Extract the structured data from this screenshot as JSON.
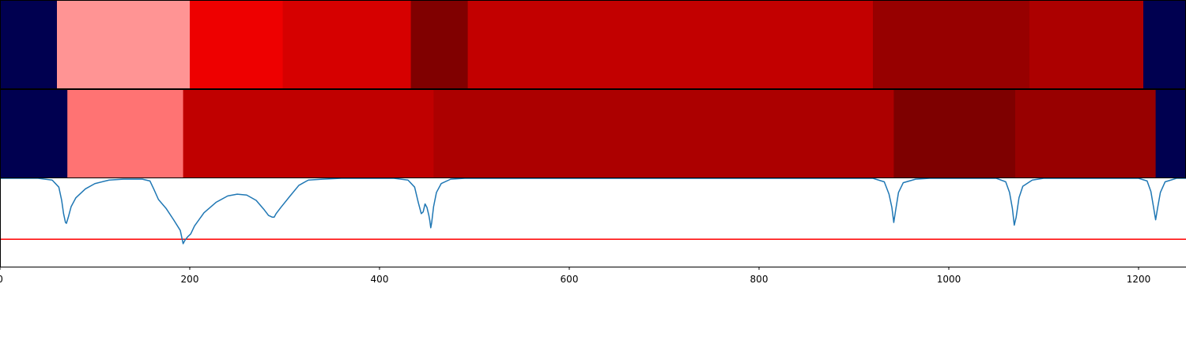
{
  "chart_data": [
    {
      "type": "heatmap",
      "row": "top",
      "segments": [
        {
          "start": 0,
          "end": 60,
          "color": "#000050"
        },
        {
          "start": 60,
          "end": 200,
          "color": "#ff9494"
        },
        {
          "start": 200,
          "end": 298,
          "color": "#ee0000"
        },
        {
          "start": 298,
          "end": 433,
          "color": "#d60000"
        },
        {
          "start": 433,
          "end": 493,
          "color": "#800000"
        },
        {
          "start": 493,
          "end": 920,
          "color": "#c20000"
        },
        {
          "start": 920,
          "end": 1085,
          "color": "#970000"
        },
        {
          "start": 1085,
          "end": 1205,
          "color": "#ac0000"
        },
        {
          "start": 1205,
          "end": 1250,
          "color": "#000050"
        }
      ]
    },
    {
      "type": "heatmap",
      "row": "middle",
      "segments": [
        {
          "start": 0,
          "end": 71,
          "color": "#000050"
        },
        {
          "start": 71,
          "end": 193,
          "color": "#ff7373"
        },
        {
          "start": 193,
          "end": 457,
          "color": "#c00000"
        },
        {
          "start": 457,
          "end": 942,
          "color": "#ac0000"
        },
        {
          "start": 942,
          "end": 1070,
          "color": "#7e0000"
        },
        {
          "start": 1070,
          "end": 1218,
          "color": "#980000"
        },
        {
          "start": 1218,
          "end": 1250,
          "color": "#000050"
        }
      ]
    },
    {
      "type": "line",
      "xlim": [
        0,
        1250
      ],
      "ylim": [
        0,
        1
      ],
      "x_ticks": [
        "0",
        "200",
        "400",
        "600",
        "800",
        "1000",
        "1200"
      ],
      "x_tick_values": [
        0,
        200,
        400,
        600,
        800,
        1000,
        1200
      ],
      "threshold": {
        "y": 0.31,
        "color": "#ff0000"
      },
      "series": [
        {
          "color": "#1f77b4",
          "points": [
            [
              0,
              1.0
            ],
            [
              40,
              1.0
            ],
            [
              55,
              0.98
            ],
            [
              62,
              0.9
            ],
            [
              65,
              0.75
            ],
            [
              67,
              0.6
            ],
            [
              69,
              0.5
            ],
            [
              70,
              0.49
            ],
            [
              72,
              0.56
            ],
            [
              75,
              0.68
            ],
            [
              80,
              0.78
            ],
            [
              90,
              0.88
            ],
            [
              100,
              0.94
            ],
            [
              115,
              0.98
            ],
            [
              130,
              0.99
            ],
            [
              150,
              0.99
            ],
            [
              158,
              0.97
            ],
            [
              162,
              0.88
            ],
            [
              167,
              0.76
            ],
            [
              175,
              0.66
            ],
            [
              183,
              0.53
            ],
            [
              190,
              0.41
            ],
            [
              193,
              0.26
            ],
            [
              195,
              0.3
            ],
            [
              198,
              0.34
            ],
            [
              201,
              0.37
            ],
            [
              205,
              0.46
            ],
            [
              215,
              0.61
            ],
            [
              228,
              0.73
            ],
            [
              240,
              0.8
            ],
            [
              250,
              0.82
            ],
            [
              260,
              0.81
            ],
            [
              270,
              0.75
            ],
            [
              278,
              0.65
            ],
            [
              283,
              0.58
            ],
            [
              287,
              0.56
            ],
            [
              289,
              0.56
            ],
            [
              291,
              0.6
            ],
            [
              296,
              0.67
            ],
            [
              305,
              0.79
            ],
            [
              315,
              0.92
            ],
            [
              325,
              0.98
            ],
            [
              340,
              0.99
            ],
            [
              360,
              1.0
            ],
            [
              415,
              1.0
            ],
            [
              430,
              0.98
            ],
            [
              437,
              0.9
            ],
            [
              441,
              0.72
            ],
            [
              444,
              0.6
            ],
            [
              446,
              0.62
            ],
            [
              448,
              0.71
            ],
            [
              450,
              0.67
            ],
            [
              452,
              0.58
            ],
            [
              453,
              0.52
            ],
            [
              454,
              0.44
            ],
            [
              455,
              0.5
            ],
            [
              457,
              0.68
            ],
            [
              460,
              0.84
            ],
            [
              465,
              0.94
            ],
            [
              475,
              0.99
            ],
            [
              490,
              1.0
            ],
            [
              920,
              1.0
            ],
            [
              932,
              0.96
            ],
            [
              937,
              0.82
            ],
            [
              940,
              0.67
            ],
            [
              942,
              0.5
            ],
            [
              944,
              0.64
            ],
            [
              947,
              0.84
            ],
            [
              952,
              0.95
            ],
            [
              965,
              0.99
            ],
            [
              980,
              1.0
            ],
            [
              1050,
              1.0
            ],
            [
              1060,
              0.96
            ],
            [
              1064,
              0.84
            ],
            [
              1067,
              0.66
            ],
            [
              1069,
              0.47
            ],
            [
              1071,
              0.56
            ],
            [
              1074,
              0.78
            ],
            [
              1078,
              0.91
            ],
            [
              1088,
              0.98
            ],
            [
              1100,
              1.0
            ],
            [
              1200,
              1.0
            ],
            [
              1209,
              0.97
            ],
            [
              1213,
              0.85
            ],
            [
              1216,
              0.66
            ],
            [
              1218,
              0.53
            ],
            [
              1220,
              0.66
            ],
            [
              1223,
              0.84
            ],
            [
              1228,
              0.96
            ],
            [
              1240,
              1.0
            ],
            [
              1250,
              1.0
            ]
          ]
        }
      ]
    }
  ]
}
